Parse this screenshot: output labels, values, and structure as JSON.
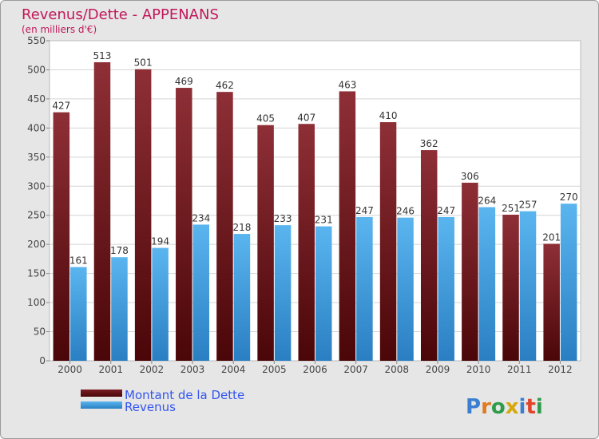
{
  "chart_data": {
    "type": "bar",
    "title": "Revenus/Dette - APPENANS",
    "subtitle": "(en milliers d'€)",
    "categories": [
      "2000",
      "2001",
      "2002",
      "2003",
      "2004",
      "2005",
      "2006",
      "2007",
      "2008",
      "2009",
      "2010",
      "2011",
      "2012"
    ],
    "series": [
      {
        "name": "Montant de la Dette",
        "values": [
          427,
          513,
          501,
          469,
          462,
          405,
          407,
          463,
          410,
          362,
          306,
          251,
          201
        ],
        "color": "#7b1e26"
      },
      {
        "name": "Revenus",
        "values": [
          161,
          178,
          194,
          234,
          218,
          233,
          231,
          247,
          246,
          247,
          264,
          257,
          270
        ],
        "color": "#4aa8e8"
      }
    ],
    "yticks": [
      0,
      50,
      100,
      150,
      200,
      250,
      300,
      350,
      400,
      450,
      500,
      550
    ],
    "ylim": [
      0,
      550
    ],
    "grid": true,
    "legend_position": "bottom-left"
  },
  "logo": {
    "text": "Proxiti"
  }
}
